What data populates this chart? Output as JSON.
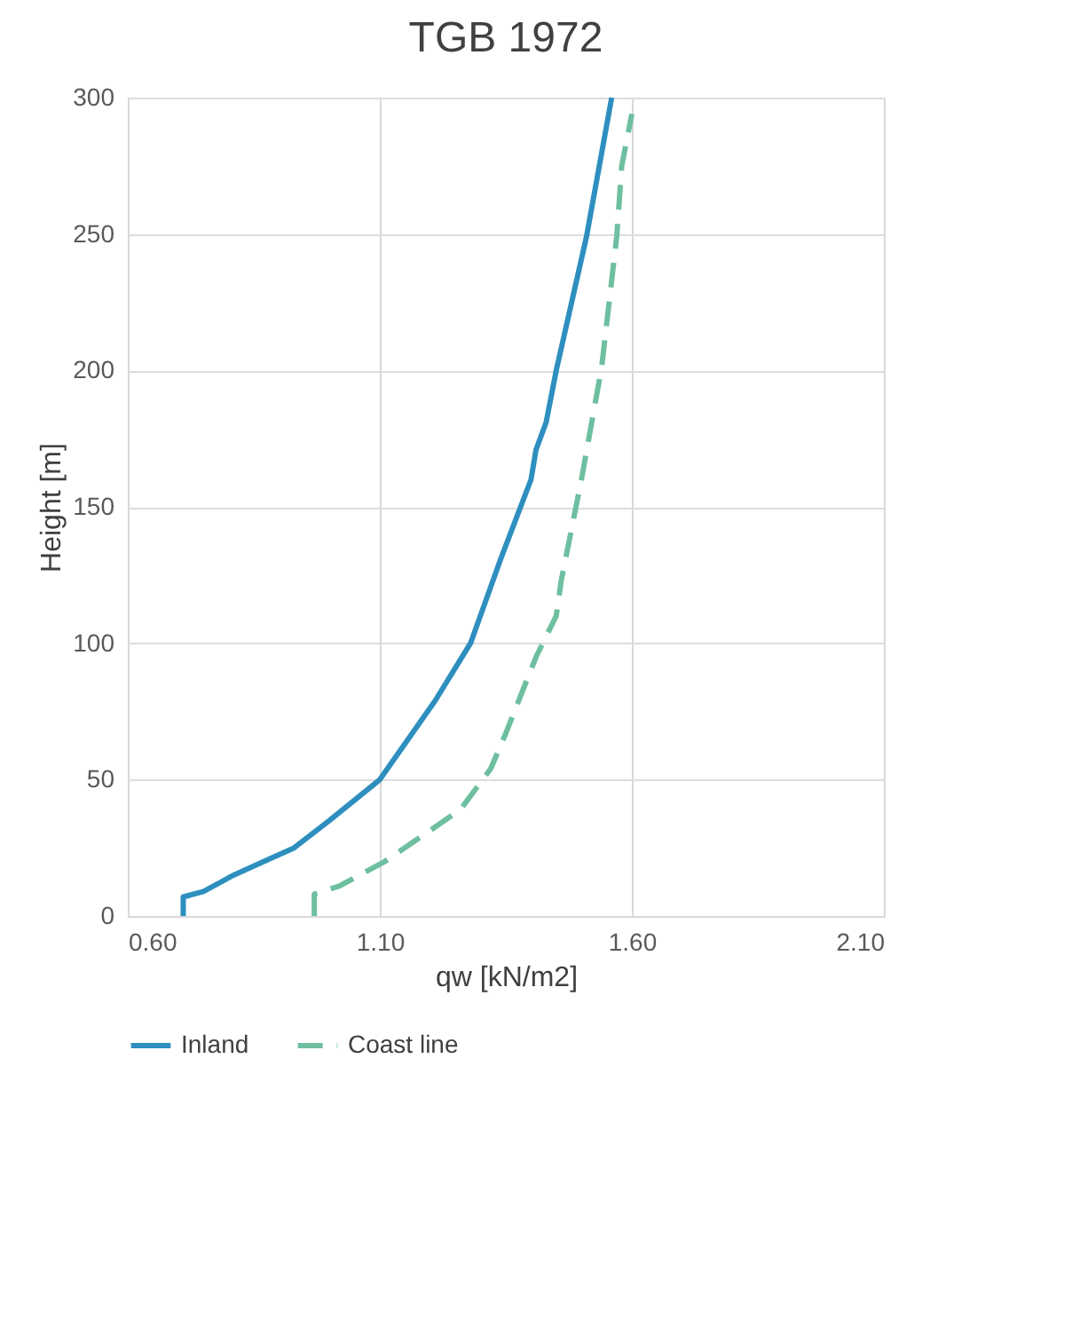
{
  "chart_data": {
    "type": "line",
    "title": "TGB 1972",
    "xlabel": "qw [kN/m2]",
    "ylabel": "Height [m]",
    "xlim": [
      0.6,
      2.1
    ],
    "xticks": [
      {
        "value": 0.6,
        "label": "0.60"
      },
      {
        "value": 1.1,
        "label": "1.10"
      },
      {
        "value": 1.6,
        "label": "1.60"
      },
      {
        "value": 2.1,
        "label": "2.10"
      }
    ],
    "ylim": [
      0,
      300
    ],
    "yticks": [
      0,
      50,
      100,
      150,
      200,
      250,
      300
    ],
    "grid": true,
    "legend": "bottom",
    "series": [
      {
        "name": "Inland",
        "color": "#2e8fbf",
        "line_style": "solid",
        "x": [
          0.71,
          0.71,
          0.75,
          0.81,
          0.87,
          0.93,
          1.0,
          1.1,
          1.21,
          1.23,
          1.28,
          1.34,
          1.4,
          1.41,
          1.43,
          1.45,
          1.51,
          1.56
        ],
        "values": [
          0,
          7,
          9,
          15,
          20,
          25,
          35,
          50,
          79,
          85,
          100,
          131,
          160,
          171,
          181,
          200,
          249,
          300
        ]
      },
      {
        "name": "Coast line",
        "color": "#6dbf9f",
        "line_style": "dashed",
        "x": [
          0.97,
          0.97,
          1.02,
          1.11,
          1.26,
          1.32,
          1.35,
          1.41,
          1.45,
          1.46,
          1.5,
          1.54,
          1.57,
          1.58,
          1.6
        ],
        "values": [
          0,
          8,
          11,
          20,
          39,
          54,
          67,
          95,
          110,
          123,
          160,
          201,
          249,
          275,
          294
        ]
      }
    ]
  }
}
